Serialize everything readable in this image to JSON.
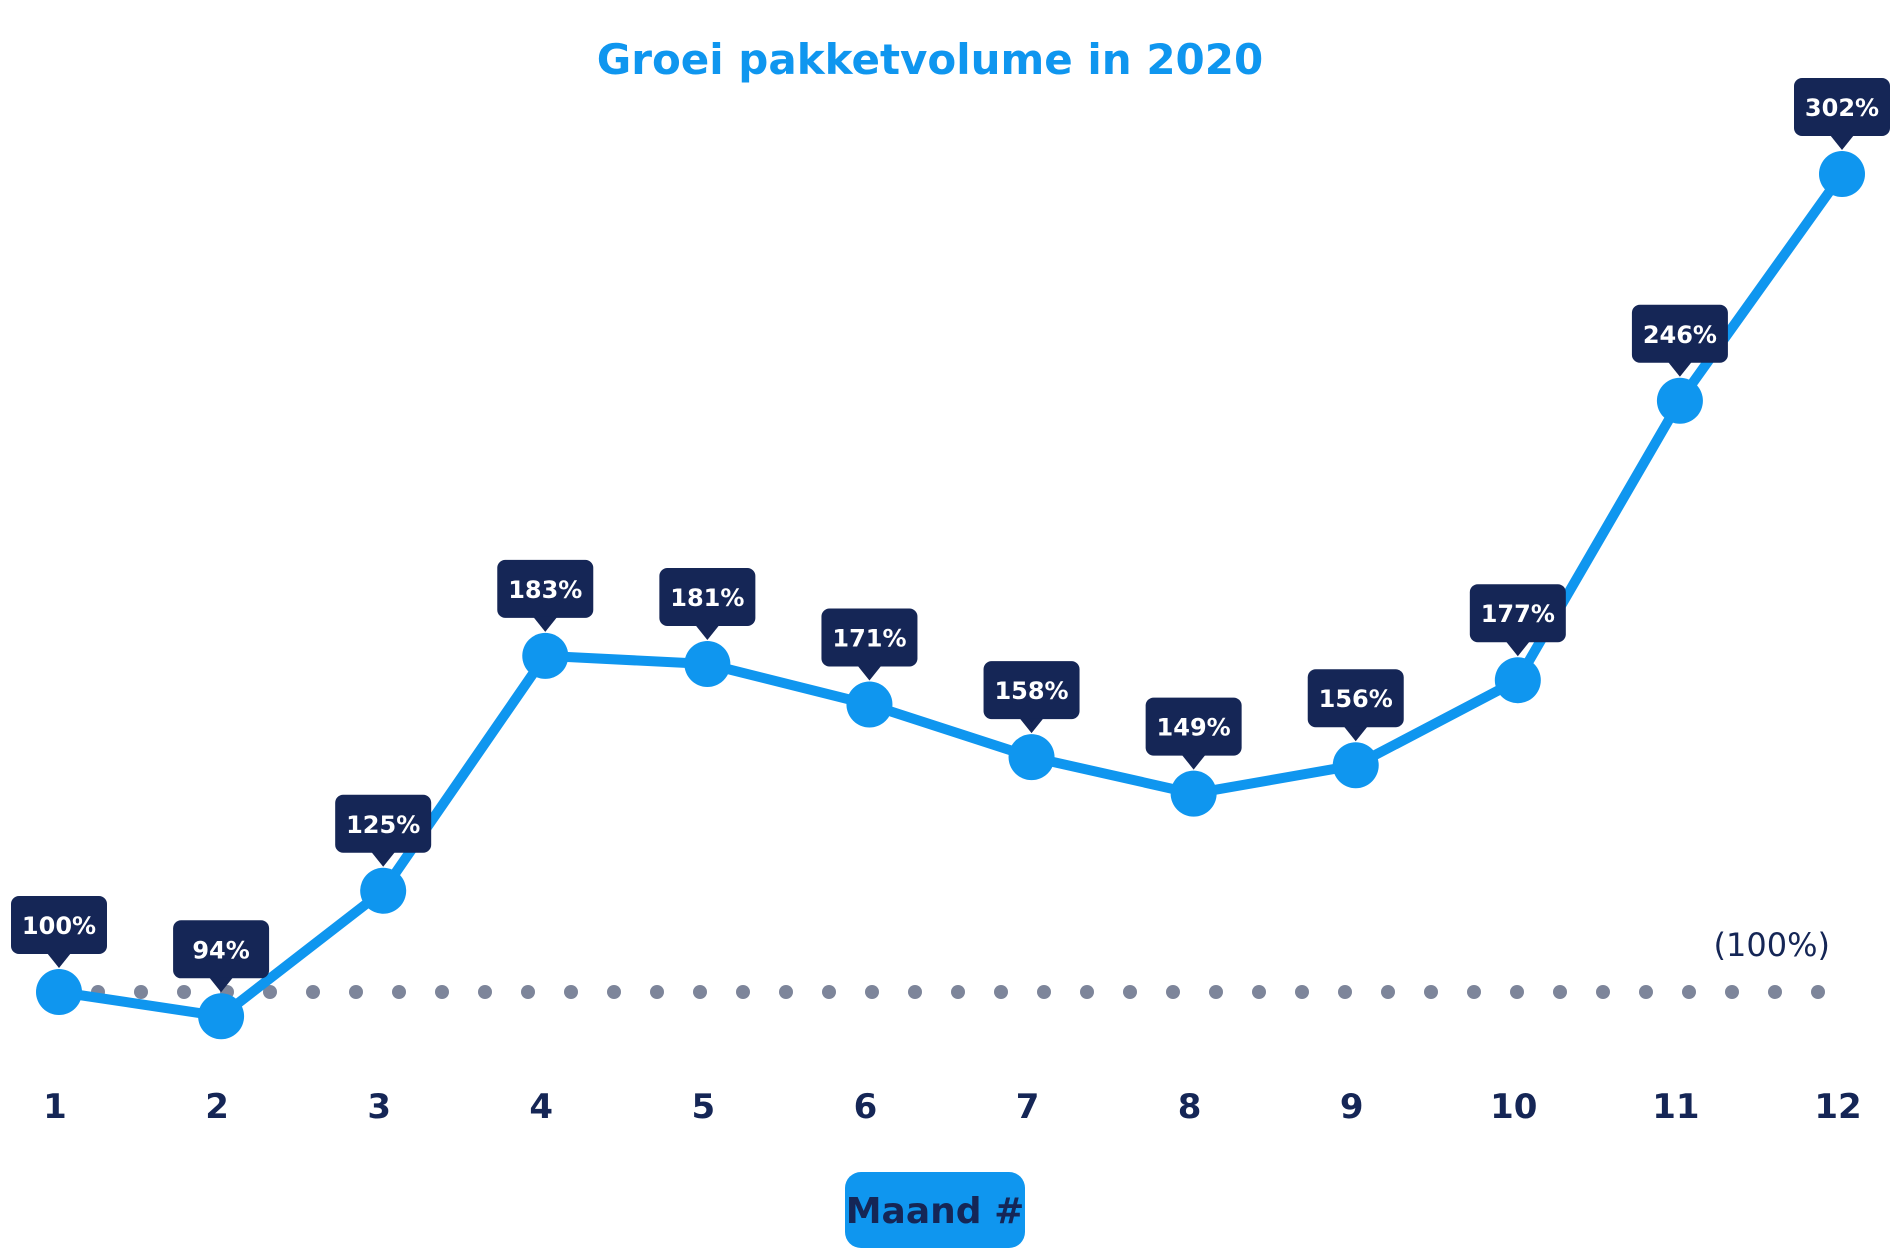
{
  "chart_data": {
    "type": "line",
    "title": "Groei pakketvolume in 2020",
    "xlabel": "Maand #",
    "ylabel": "",
    "categories": [
      "1",
      "2",
      "3",
      "4",
      "5",
      "6",
      "7",
      "8",
      "9",
      "10",
      "11",
      "12"
    ],
    "series": [
      {
        "name": "Groei pakketvolume",
        "values": [
          100,
          94,
          125,
          183,
          181,
          171,
          158,
          149,
          156,
          177,
          246,
          302
        ],
        "labels": [
          "100%",
          "94%",
          "125%",
          "183%",
          "181%",
          "171%",
          "158%",
          "149%",
          "156%",
          "177%",
          "246%",
          "302%"
        ]
      }
    ],
    "reference_line": {
      "value": 100,
      "label": "(100%)",
      "style": "dotted"
    },
    "ylim": [
      90,
      310
    ],
    "grid": false,
    "legend": "none"
  },
  "colors": {
    "title": "#0f96ef",
    "line": "#0f96ef",
    "callout": "#152656",
    "reference_dots": "#7d859a",
    "axis_text": "#152656"
  }
}
